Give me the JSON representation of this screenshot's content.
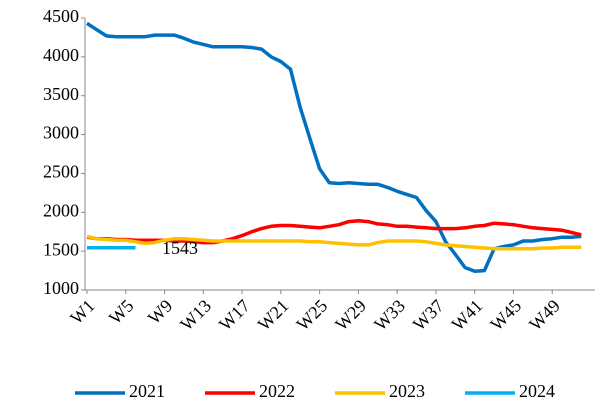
{
  "chart_data": {
    "type": "line",
    "categories": [
      "W1",
      null,
      null,
      null,
      "W5",
      null,
      null,
      null,
      "W9",
      null,
      null,
      null,
      "W13",
      null,
      null,
      null,
      "W17",
      null,
      null,
      null,
      "W21",
      null,
      null,
      null,
      "W25",
      null,
      null,
      null,
      "W29",
      null,
      null,
      null,
      "W33",
      null,
      null,
      null,
      "W37",
      null,
      null,
      null,
      "W41",
      null,
      null,
      null,
      "W45",
      null,
      null,
      null,
      "W49",
      null,
      null,
      null
    ],
    "series": [
      {
        "name": "2021",
        "color": "#0070c0",
        "values": [
          4430,
          4350,
          4270,
          4260,
          4260,
          4260,
          4260,
          4280,
          4280,
          4280,
          4240,
          4190,
          4160,
          4130,
          4130,
          4130,
          4130,
          4120,
          4100,
          4000,
          3940,
          3840,
          3350,
          2950,
          2560,
          2380,
          2370,
          2380,
          2370,
          2360,
          2360,
          2320,
          2270,
          2230,
          2190,
          2020,
          1880,
          1620,
          1460,
          1290,
          1240,
          1250,
          1530,
          1560,
          1580,
          1630,
          1630,
          1650,
          1660,
          1680,
          1680,
          1690
        ]
      },
      {
        "name": "2022",
        "color": "#ff0000",
        "values": [
          1680,
          1660,
          1660,
          1650,
          1650,
          1640,
          1640,
          1640,
          1640,
          1630,
          1630,
          1620,
          1610,
          1610,
          1630,
          1660,
          1700,
          1750,
          1790,
          1820,
          1830,
          1830,
          1820,
          1810,
          1800,
          1820,
          1840,
          1880,
          1890,
          1880,
          1850,
          1840,
          1820,
          1820,
          1810,
          1800,
          1790,
          1790,
          1790,
          1800,
          1820,
          1830,
          1860,
          1850,
          1840,
          1820,
          1800,
          1790,
          1780,
          1770,
          1740,
          1710
        ]
      },
      {
        "name": "2023",
        "color": "#ffc000",
        "values": [
          1690,
          1660,
          1650,
          1640,
          1640,
          1620,
          1600,
          1610,
          1640,
          1660,
          1660,
          1650,
          1640,
          1630,
          1630,
          1630,
          1630,
          1630,
          1630,
          1630,
          1630,
          1630,
          1630,
          1620,
          1620,
          1610,
          1600,
          1590,
          1580,
          1580,
          1610,
          1630,
          1630,
          1630,
          1630,
          1620,
          1600,
          1580,
          1570,
          1560,
          1550,
          1540,
          1530,
          1530,
          1530,
          1530,
          1530,
          1540,
          1540,
          1550,
          1550,
          1550
        ]
      },
      {
        "name": "2024",
        "color": "#00b0f0",
        "values": [
          1543,
          1543,
          1543,
          1543,
          1543,
          1543,
          null,
          null,
          null,
          null,
          null,
          null,
          null,
          null,
          null,
          null,
          null,
          null,
          null,
          null,
          null,
          null,
          null,
          null,
          null,
          null,
          null,
          null,
          null,
          null,
          null,
          null,
          null,
          null,
          null,
          null,
          null,
          null,
          null,
          null,
          null,
          null,
          null,
          null,
          null,
          null,
          null,
          null,
          null,
          null,
          null,
          null
        ]
      }
    ],
    "annotation": "1543",
    "ylim": [
      1000,
      4500
    ],
    "yticks": [
      1000,
      1500,
      2000,
      2500,
      3000,
      3500,
      4000,
      4500
    ],
    "grid": false,
    "legend": "bottom"
  }
}
